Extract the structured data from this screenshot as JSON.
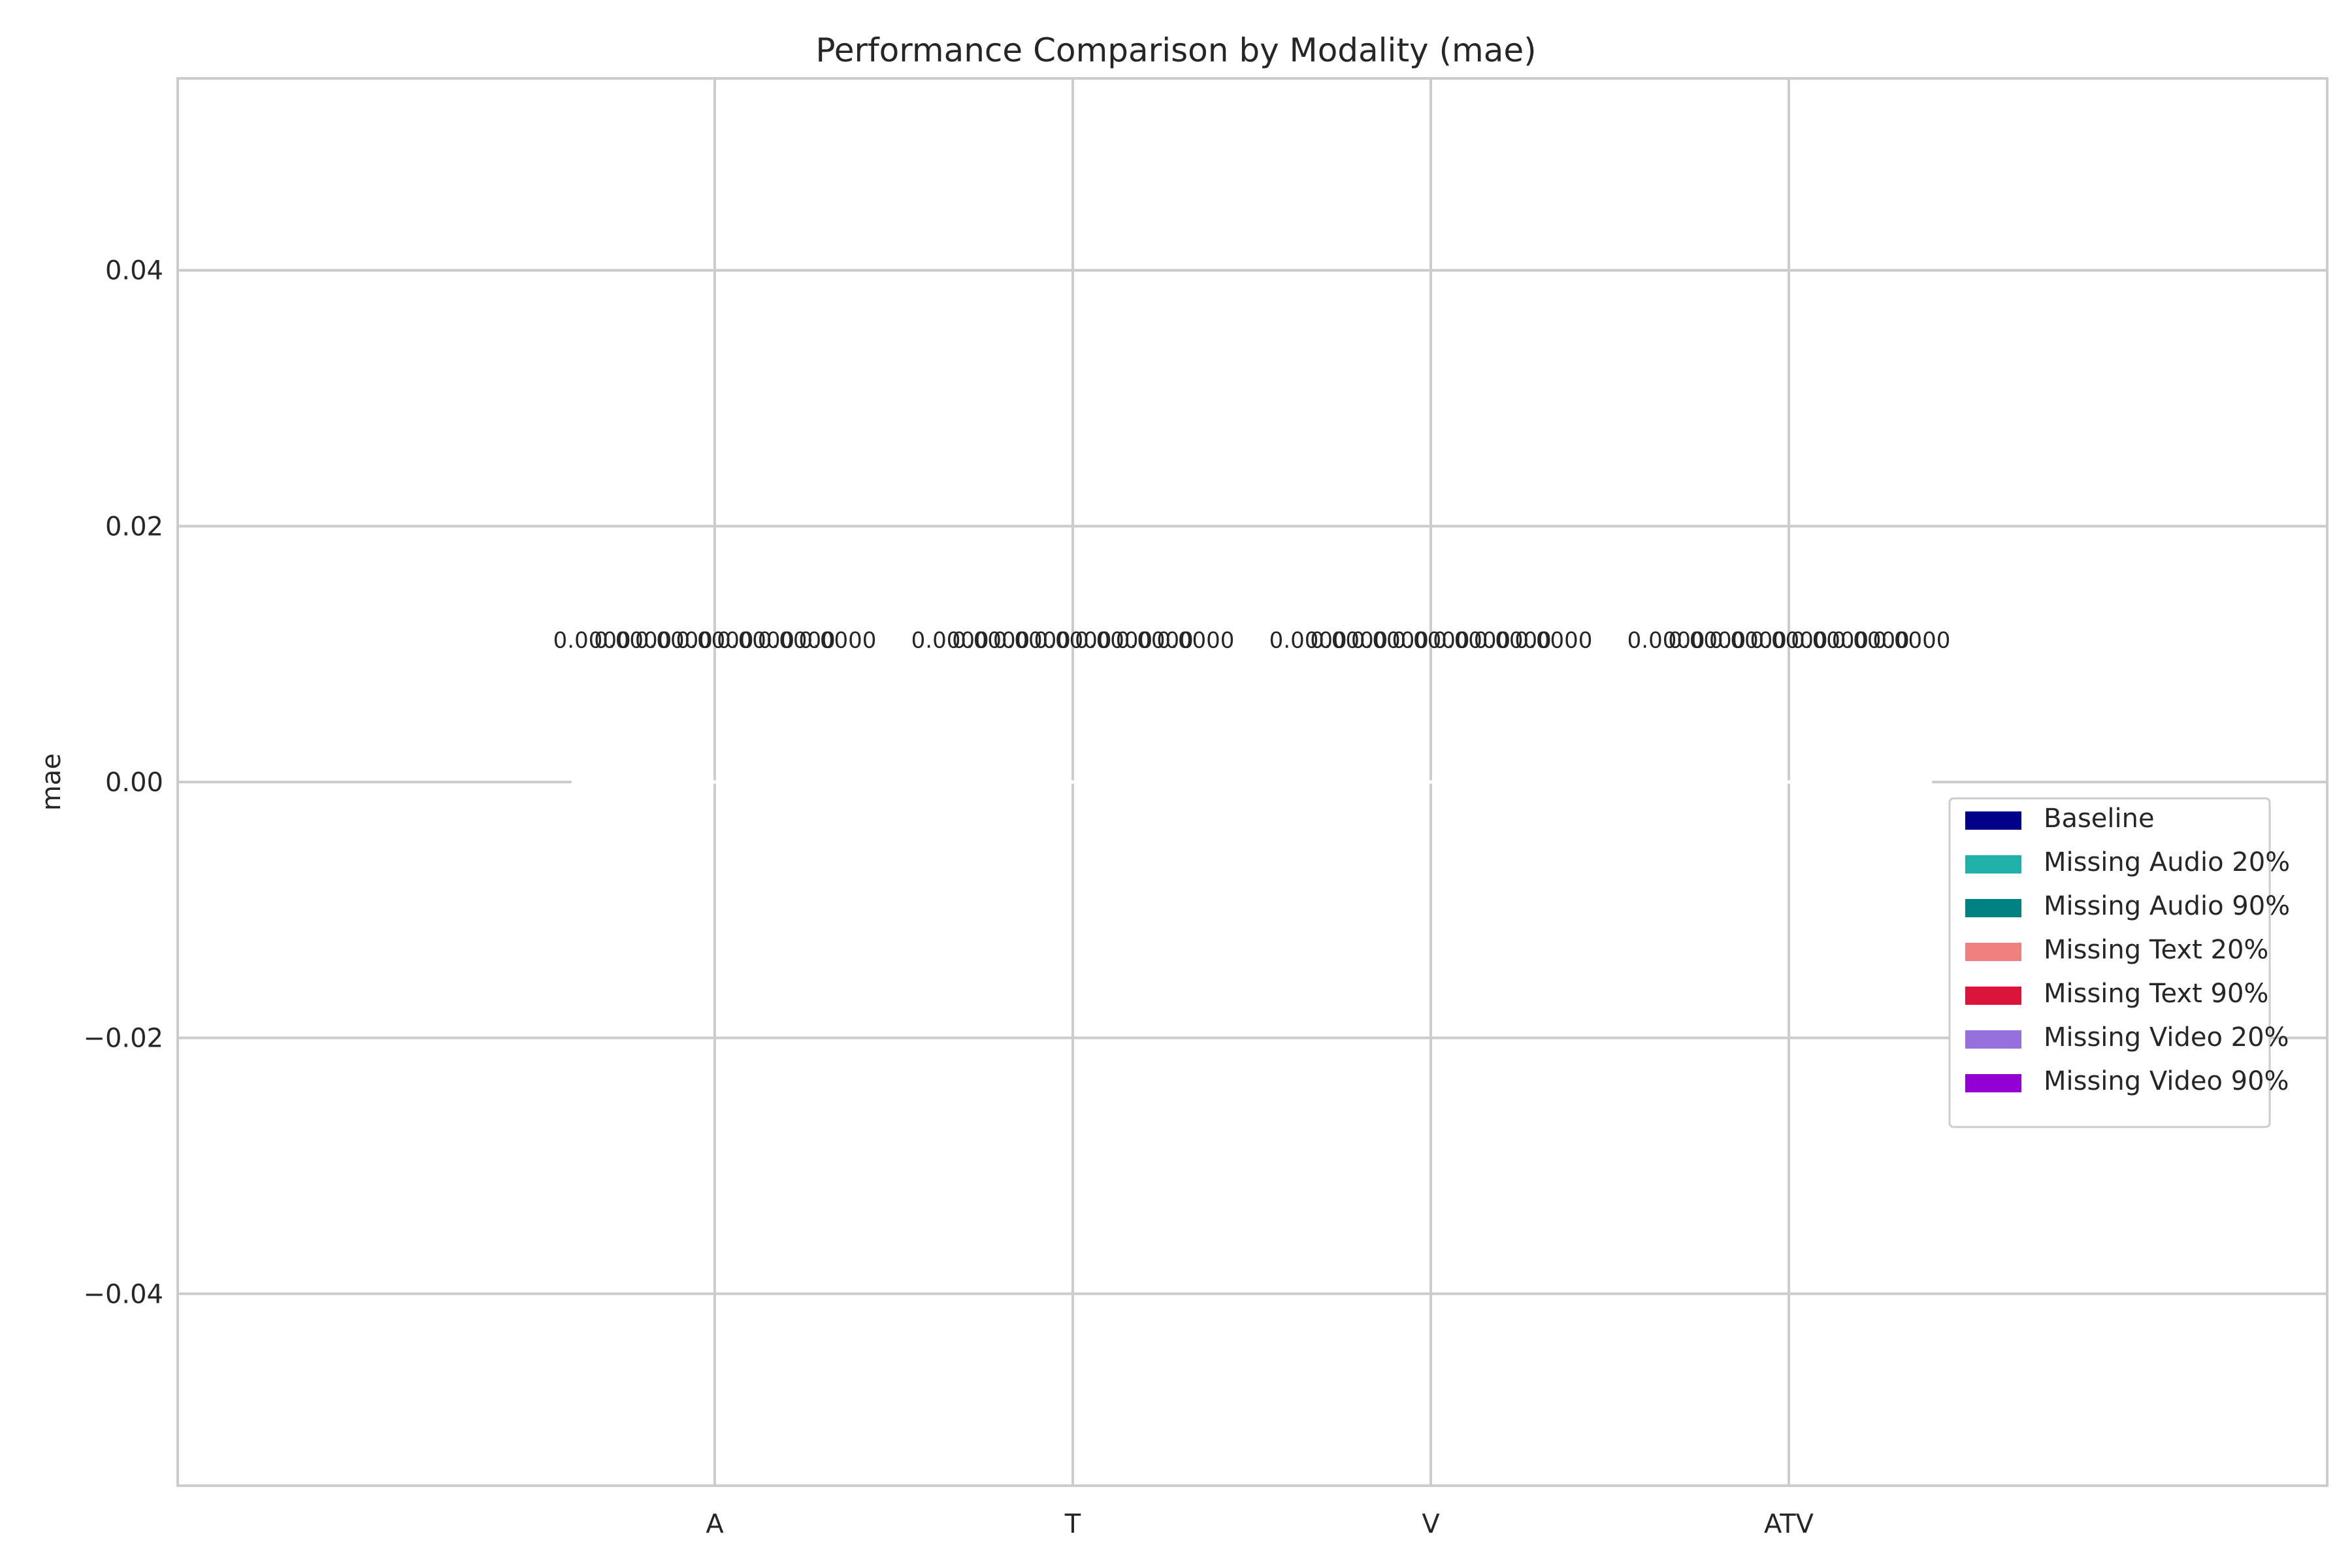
{
  "chart_data": {
    "type": "bar",
    "title": "Performance Comparison by Modality (mae)",
    "xlabel": "",
    "ylabel": "mae",
    "ylim": [
      -0.055,
      0.055
    ],
    "yticks": [
      -0.04,
      -0.02,
      0.0,
      0.02,
      0.04
    ],
    "ytick_labels": [
      "−0.04",
      "−0.02",
      "0.00",
      "0.02",
      "0.04"
    ],
    "categories": [
      "A",
      "T",
      "V",
      "ATV"
    ],
    "grid": true,
    "legend_position": "center-right",
    "series": [
      {
        "name": "Baseline",
        "color": "#00008b",
        "values": [
          0,
          0,
          0,
          0
        ]
      },
      {
        "name": "Missing Audio 20%",
        "color": "#20b2aa",
        "values": [
          0,
          0,
          0,
          0
        ]
      },
      {
        "name": "Missing Audio 90%",
        "color": "#008080",
        "values": [
          0,
          0,
          0,
          0
        ]
      },
      {
        "name": "Missing Text 20%",
        "color": "#f08080",
        "values": [
          0,
          0,
          0,
          0
        ]
      },
      {
        "name": "Missing Text 90%",
        "color": "#dc143c",
        "values": [
          0,
          0,
          0,
          0
        ]
      },
      {
        "name": "Missing Video 20%",
        "color": "#9370db",
        "values": [
          0,
          0,
          0,
          0
        ]
      },
      {
        "name": "Missing Video 90%",
        "color": "#9400d3",
        "values": [
          0,
          0,
          0,
          0
        ]
      }
    ],
    "data_label": "0.0000"
  }
}
